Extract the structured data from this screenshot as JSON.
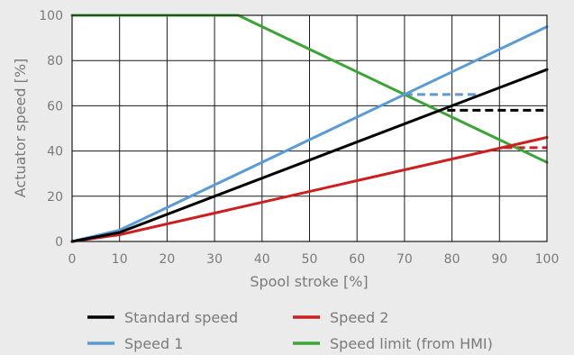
{
  "chart_data": {
    "type": "line",
    "xlabel": "Spool stroke [%]",
    "ylabel": "Actuator speed [%]",
    "xlim": [
      0,
      100
    ],
    "ylim": [
      0,
      100
    ],
    "x_ticks": [
      0,
      10,
      20,
      30,
      40,
      50,
      60,
      70,
      80,
      90,
      100
    ],
    "y_ticks": [
      0,
      20,
      40,
      60,
      80,
      100
    ],
    "x_tick_labels": [
      "0",
      "10",
      "20",
      "30",
      "40",
      "50",
      "60",
      "70",
      "80",
      "90",
      "100"
    ],
    "y_tick_labels": [
      "0",
      "20",
      "40",
      "60",
      "80",
      "100"
    ],
    "grid": true,
    "legend_position": "bottom",
    "series": [
      {
        "name": "Standard speed",
        "color": "#000000",
        "points": [
          [
            0,
            0
          ],
          [
            10,
            4
          ],
          [
            100,
            76
          ]
        ],
        "limit_line": {
          "y": 58,
          "x": [
            79,
            100
          ]
        }
      },
      {
        "name": "Speed 1",
        "color": "#5b9bd5",
        "points": [
          [
            0,
            0
          ],
          [
            10,
            5
          ],
          [
            100,
            95
          ]
        ],
        "limit_line": {
          "y": 65,
          "x": [
            70,
            85
          ]
        }
      },
      {
        "name": "Speed 2",
        "color": "#cc1f1f",
        "points": [
          [
            0,
            0
          ],
          [
            10,
            3
          ],
          [
            100,
            46
          ]
        ],
        "limit_line": {
          "y": 41.5,
          "x": [
            91,
            100
          ]
        }
      },
      {
        "name": "Speed limit (from HMI)",
        "color": "#3aa536",
        "points": [
          [
            0,
            100
          ],
          [
            35,
            100
          ],
          [
            44,
            91
          ],
          [
            100,
            35
          ]
        ]
      }
    ],
    "legend_order": [
      "Standard speed",
      "Speed 2",
      "Speed 1",
      "Speed limit (from HMI)"
    ]
  }
}
